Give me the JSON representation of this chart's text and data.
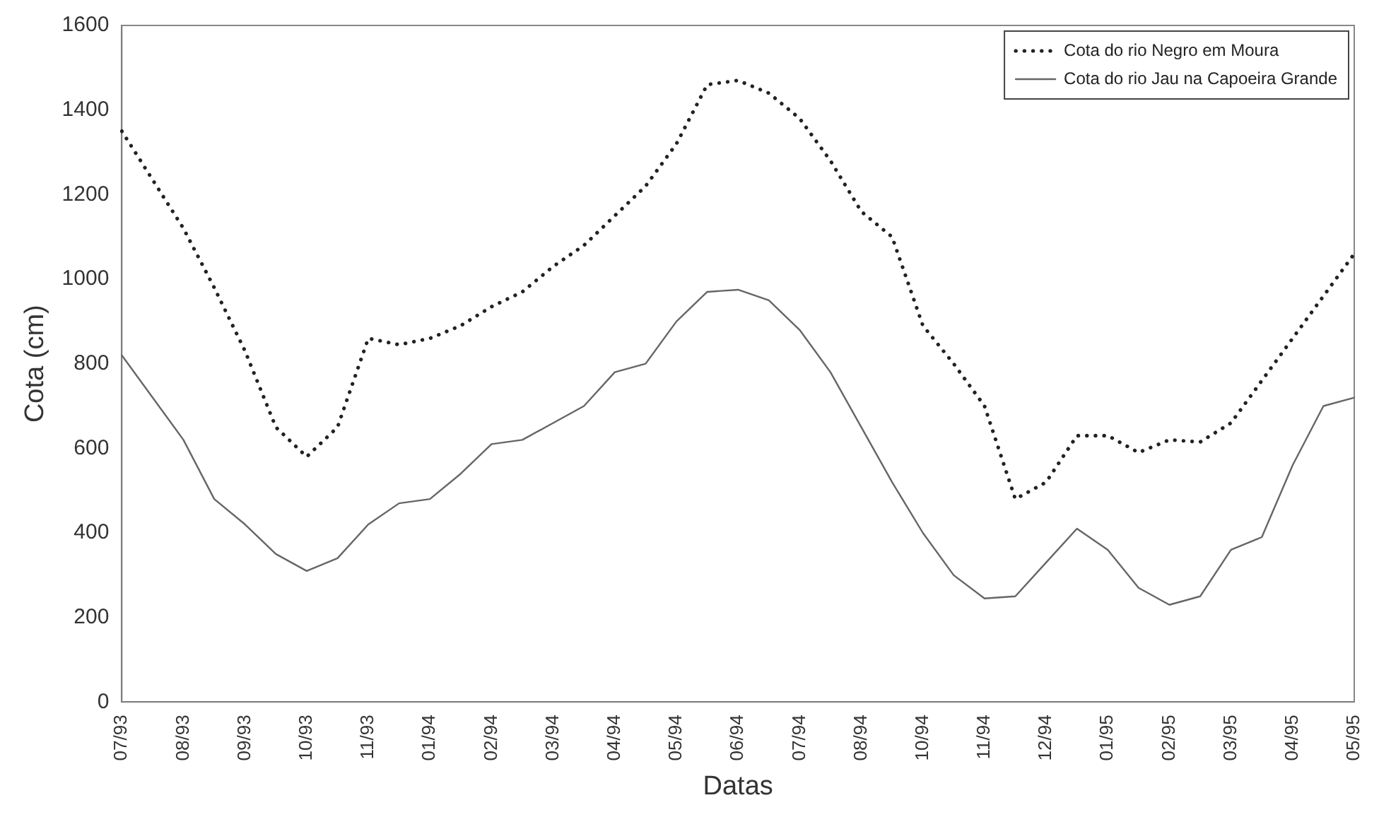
{
  "chart_data": {
    "type": "line",
    "xlabel": "Datas",
    "ylabel": "Cota (cm)",
    "categories": [
      "07/93",
      null,
      "08/93",
      null,
      "09/93",
      null,
      "10/93",
      null,
      "11/93",
      null,
      "01/94",
      null,
      "02/94",
      null,
      "03/94",
      null,
      "04/94",
      null,
      "05/94",
      null,
      "06/94",
      null,
      "07/94",
      null,
      "08/94",
      null,
      "10/94",
      null,
      "11/94",
      null,
      "12/94",
      null,
      "01/95",
      null,
      "02/95",
      null,
      "03/95",
      null,
      "04/95",
      null,
      "05/95"
    ],
    "series": [
      {
        "name": "Cota do rio Negro em Moura",
        "color": "#222222",
        "line_style": "dotted",
        "values": [
          1350,
          1235,
          1120,
          980,
          830,
          650,
          580,
          650,
          860,
          845,
          860,
          890,
          935,
          970,
          1030,
          1080,
          1150,
          1220,
          1320,
          1460,
          1470,
          1440,
          1380,
          1280,
          1160,
          1100,
          890,
          800,
          700,
          480,
          520,
          630,
          630,
          590,
          620,
          615,
          660,
          760,
          860,
          960,
          1060
        ]
      },
      {
        "name": "Cota do rio Jau na Capoeira Grande",
        "color": "#666666",
        "line_style": "solid",
        "values": [
          820,
          720,
          620,
          480,
          420,
          350,
          310,
          340,
          420,
          470,
          480,
          540,
          610,
          620,
          660,
          700,
          780,
          800,
          900,
          970,
          975,
          950,
          880,
          780,
          650,
          520,
          400,
          300,
          245,
          250,
          330,
          410,
          360,
          270,
          230,
          250,
          360,
          390,
          560,
          700,
          720
        ]
      }
    ],
    "ylim": [
      0,
      1600
    ],
    "yticks": [
      0,
      200,
      400,
      600,
      800,
      1000,
      1200,
      1400,
      1600
    ],
    "grid": false,
    "legend": "top right",
    "marker": "none"
  }
}
